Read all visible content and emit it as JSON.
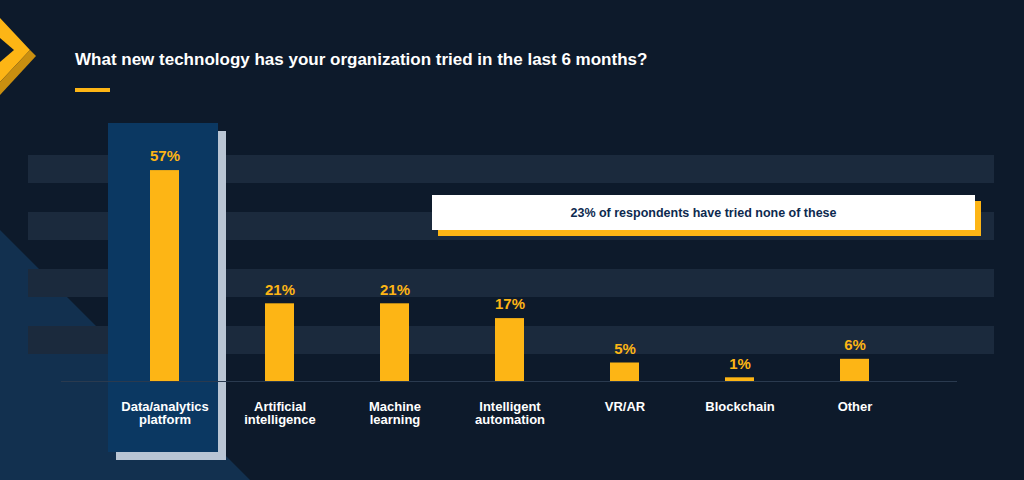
{
  "chart_data": {
    "type": "bar",
    "title": "What new technology has your organization tried in the last 6 months?",
    "categories": [
      "Data/analytics platform",
      "Artificial intelligence",
      "Machine learning",
      "Intelligent automation",
      "VR/AR",
      "Blockchain",
      "Other"
    ],
    "values": [
      57,
      21,
      21,
      17,
      5,
      1,
      6
    ],
    "value_labels": [
      "57%",
      "21%",
      "21%",
      "17%",
      "5%",
      "1%",
      "6%"
    ],
    "color": "#fdb515",
    "ylim": [
      0,
      60
    ],
    "data_labels": true,
    "tick_labels": "x",
    "annotation": "23% of respondents have tried none of these"
  }
}
